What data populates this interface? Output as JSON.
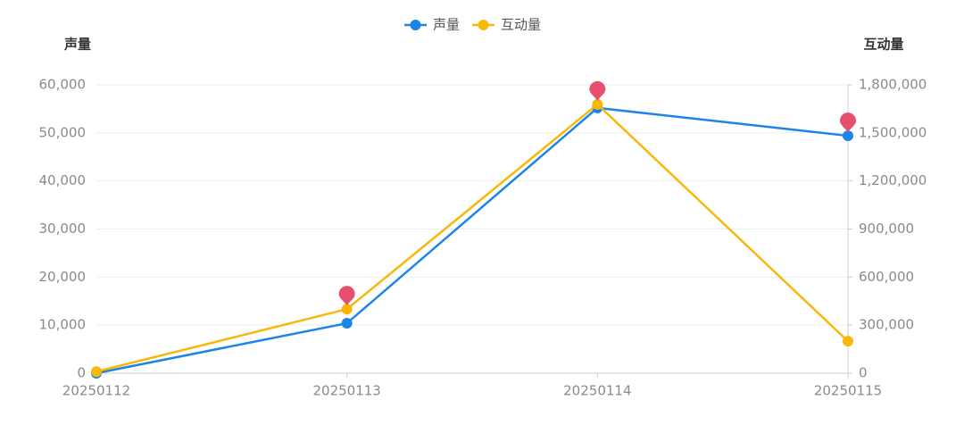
{
  "chart_data": {
    "type": "line",
    "y_axis_label": "声量",
    "y2_axis_label": "互动量",
    "x": [
      "20250112",
      "20250113",
      "20250114",
      "20250115"
    ],
    "series": [
      {
        "name": "声量",
        "color": "#1c84e6",
        "values": [
          0,
          10400,
          55200,
          49400
        ]
      },
      {
        "name": "互动量",
        "color": "#f8b80a",
        "axis": "y2",
        "values": [
          10000,
          400000,
          1678000,
          200000
        ]
      }
    ],
    "ylim": [
      0,
      60000
    ],
    "yticks": [
      0,
      {
        "value": 10000,
        "label": "10,000"
      },
      {
        "value": 20000,
        "label": "20,000"
      },
      {
        "value": 30000,
        "label": "30,000"
      },
      {
        "value": 40000,
        "label": "40,000"
      },
      {
        "value": 50000,
        "label": "50,000"
      },
      {
        "value": 60000,
        "label": "60,000"
      }
    ],
    "y2lim": [
      0,
      1800000
    ],
    "y2ticks": [
      0,
      {
        "value": 300000,
        "label": "300,000"
      },
      {
        "value": 600000,
        "label": "600,000"
      },
      {
        "value": 900000,
        "label": "900,000"
      },
      {
        "value": 1200000,
        "label": "1,200,000"
      },
      {
        "value": 1500000,
        "label": "1,500,000"
      },
      {
        "value": 1800000,
        "label": "1,800,000"
      }
    ],
    "grid": true,
    "legend": "top"
  }
}
